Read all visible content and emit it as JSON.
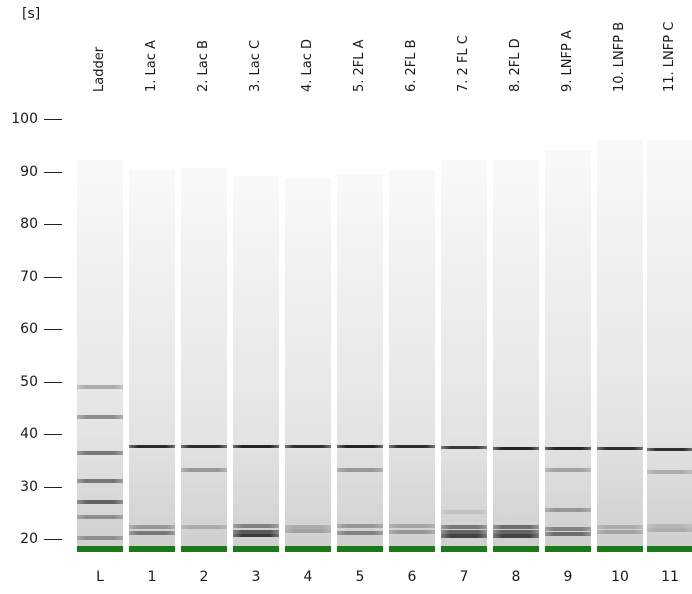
{
  "unit_label": "[s]",
  "y_axis": {
    "ticks": [
      100,
      90,
      80,
      70,
      60,
      50,
      40,
      30,
      20
    ]
  },
  "marker_color": "#1a7a1a",
  "lanes": [
    {
      "id": "L",
      "label": "Ladder",
      "bands": [
        {
          "t": 20.2,
          "intensity": 0.45
        },
        {
          "t": 24.1,
          "intensity": 0.45
        },
        {
          "t": 27.1,
          "intensity": 0.65
        },
        {
          "t": 31.1,
          "intensity": 0.55
        },
        {
          "t": 36.3,
          "intensity": 0.55
        },
        {
          "t": 43.2,
          "intensity": 0.45
        },
        {
          "t": 48.9,
          "intensity": 0.3
        }
      ]
    },
    {
      "id": "1",
      "label": "1. Lac A",
      "bands": [
        {
          "t": 21.2,
          "intensity": 0.55
        },
        {
          "t": 22.3,
          "intensity": 0.4
        },
        {
          "t": 37.6,
          "intensity": 0.92
        }
      ]
    },
    {
      "id": "2",
      "label": "2. Lac B",
      "bands": [
        {
          "t": 22.2,
          "intensity": 0.3
        },
        {
          "t": 33.2,
          "intensity": 0.4
        },
        {
          "t": 37.6,
          "intensity": 0.92
        }
      ]
    },
    {
      "id": "3",
      "label": "3. Lac C",
      "bands": [
        {
          "t": 20.6,
          "intensity": 0.85
        },
        {
          "t": 21.4,
          "intensity": 0.7
        },
        {
          "t": 22.5,
          "intensity": 0.5
        },
        {
          "t": 37.6,
          "intensity": 0.95
        }
      ]
    },
    {
      "id": "4",
      "label": "4. Lac D",
      "bands": [
        {
          "t": 21.5,
          "intensity": 0.35
        },
        {
          "t": 22.3,
          "intensity": 0.3
        },
        {
          "t": 37.6,
          "intensity": 0.9
        }
      ]
    },
    {
      "id": "5",
      "label": "5. 2FL A",
      "bands": [
        {
          "t": 21.2,
          "intensity": 0.5
        },
        {
          "t": 22.4,
          "intensity": 0.4
        },
        {
          "t": 33.2,
          "intensity": 0.4
        },
        {
          "t": 37.6,
          "intensity": 0.95
        }
      ]
    },
    {
      "id": "6",
      "label": "6. 2FL B",
      "bands": [
        {
          "t": 21.3,
          "intensity": 0.4
        },
        {
          "t": 22.4,
          "intensity": 0.35
        },
        {
          "t": 37.6,
          "intensity": 0.9
        }
      ]
    },
    {
      "id": "7",
      "label": "7. 2 FL C",
      "bands": [
        {
          "t": 20.6,
          "intensity": 0.8
        },
        {
          "t": 21.4,
          "intensity": 0.65
        },
        {
          "t": 22.3,
          "intensity": 0.55
        },
        {
          "t": 25.2,
          "intensity": 0.2
        },
        {
          "t": 37.5,
          "intensity": 0.85
        }
      ]
    },
    {
      "id": "8",
      "label": "8. 2FL D",
      "bands": [
        {
          "t": 20.6,
          "intensity": 0.8
        },
        {
          "t": 21.4,
          "intensity": 0.65
        },
        {
          "t": 22.3,
          "intensity": 0.6
        },
        {
          "t": 37.2,
          "intensity": 0.95
        }
      ]
    },
    {
      "id": "9",
      "label": "9. LNFP A",
      "bands": [
        {
          "t": 21.0,
          "intensity": 0.6
        },
        {
          "t": 22.0,
          "intensity": 0.5
        },
        {
          "t": 25.5,
          "intensity": 0.4
        },
        {
          "t": 33.2,
          "intensity": 0.35
        },
        {
          "t": 37.2,
          "intensity": 0.95
        }
      ]
    },
    {
      "id": "10",
      "label": "10. LNFP B",
      "bands": [
        {
          "t": 21.4,
          "intensity": 0.35
        },
        {
          "t": 22.3,
          "intensity": 0.3
        },
        {
          "t": 37.2,
          "intensity": 0.9
        }
      ]
    },
    {
      "id": "11",
      "label": "11. LNFP C",
      "bands": [
        {
          "t": 21.8,
          "intensity": 0.3
        },
        {
          "t": 22.4,
          "intensity": 0.25
        },
        {
          "t": 32.8,
          "intensity": 0.3
        },
        {
          "t": 37.0,
          "intensity": 0.9
        }
      ]
    }
  ]
}
